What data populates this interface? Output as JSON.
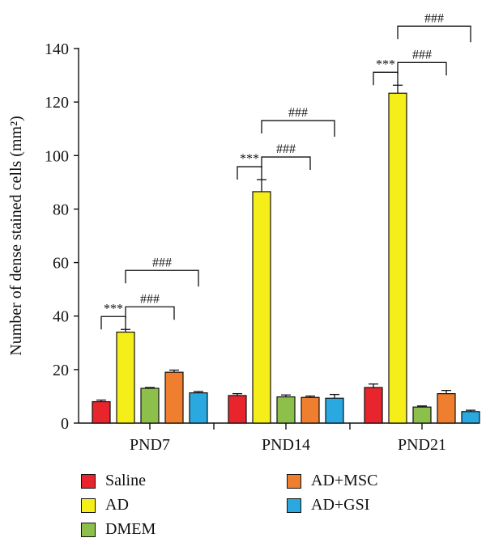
{
  "chart_data": {
    "type": "bar",
    "ylabel": "Number of dense stained cells (mm²)",
    "ylim": [
      0,
      140
    ],
    "yticks": [
      0,
      20,
      40,
      60,
      80,
      100,
      120,
      140
    ],
    "ytick_labels": [
      "0",
      "20",
      "40",
      "60",
      "80",
      "100",
      "120",
      "140"
    ],
    "categories": [
      "PND7",
      "PND14",
      "PND21"
    ],
    "series": [
      {
        "name": "Saline",
        "color": "#e8242c",
        "values": [
          8,
          10.3,
          13.3
        ],
        "errors": [
          0.6,
          0.7,
          1.3
        ]
      },
      {
        "name": "AD",
        "color": "#f5ee19",
        "values": [
          34,
          86.5,
          123.3
        ],
        "errors": [
          1.0,
          4.5,
          3.0
        ]
      },
      {
        "name": "DMEM",
        "color": "#8cc04a",
        "values": [
          13,
          9.8,
          6
        ],
        "errors": [
          0.3,
          0.7,
          0.4
        ]
      },
      {
        "name": "AD+MSC",
        "color": "#ef7f2e",
        "values": [
          19,
          9.6,
          11
        ],
        "errors": [
          0.8,
          0.5,
          1.2
        ]
      },
      {
        "name": "AD+GSI",
        "color": "#2aa8e0",
        "values": [
          11.3,
          9.3,
          4.3
        ],
        "errors": [
          0.5,
          1.4,
          0.5
        ]
      }
    ],
    "significance": [
      {
        "group": 0,
        "from": 0,
        "to": 1,
        "label": "***"
      },
      {
        "group": 0,
        "from": 1,
        "to": 3,
        "label": "###"
      },
      {
        "group": 0,
        "from": 1,
        "to": 4,
        "label": "###"
      },
      {
        "group": 1,
        "from": 0,
        "to": 1,
        "label": "***"
      },
      {
        "group": 1,
        "from": 1,
        "to": 3,
        "label": "###"
      },
      {
        "group": 1,
        "from": 1,
        "to": 4,
        "label": "###"
      },
      {
        "group": 2,
        "from": 0,
        "to": 1,
        "label": "***"
      },
      {
        "group": 2,
        "from": 1,
        "to": 3,
        "label": "###"
      },
      {
        "group": 2,
        "from": 1,
        "to": 4,
        "label": "###"
      }
    ],
    "legend": {
      "position": "bottom",
      "items": [
        "Saline",
        "AD",
        "DMEM",
        "AD+MSC",
        "AD+GSI"
      ]
    }
  }
}
